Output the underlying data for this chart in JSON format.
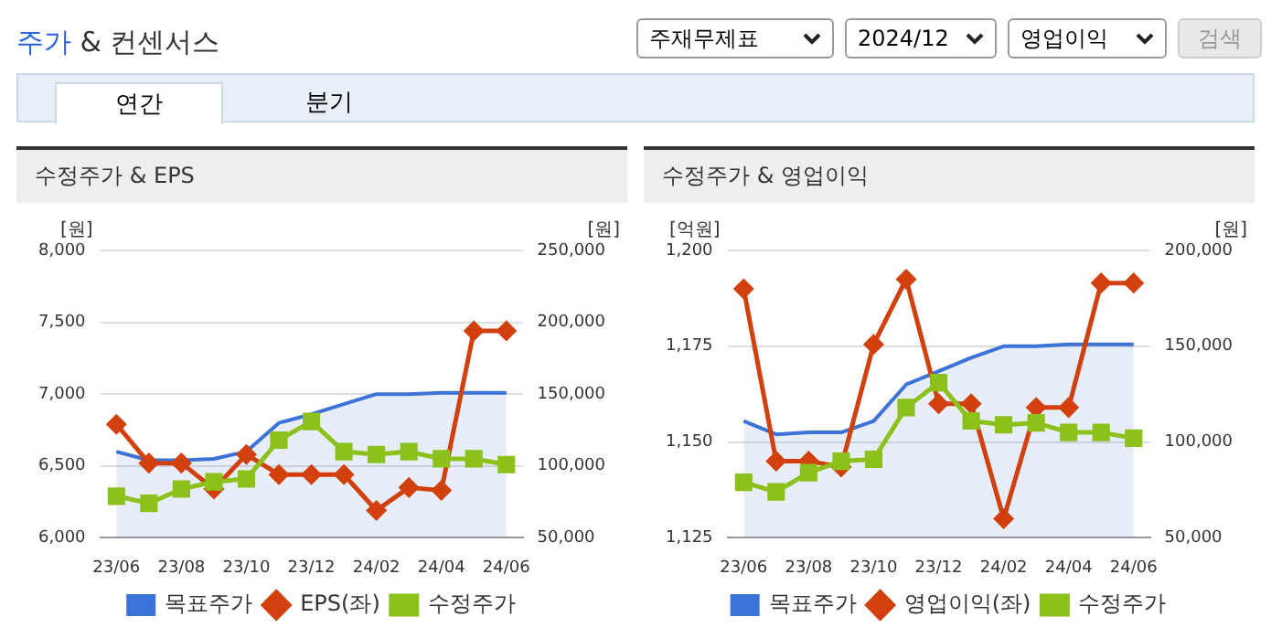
{
  "chart_data": [
    {
      "type": "other",
      "title": "주가 & 컨센서스",
      "annotations": [
        "주재무제표",
        "2024/12",
        "영업이익",
        "검색",
        "연간",
        "분기"
      ]
    },
    {
      "type": "line",
      "title": "수정주가 & EPS",
      "ylabel": "[원]",
      "y2label": "[원]",
      "categories": [
        "23/06",
        null,
        "23/08",
        null,
        "23/10",
        null,
        "23/12",
        null,
        "24/02",
        null,
        "24/04",
        null,
        "24/06"
      ],
      "series": [
        {
          "name": "목표주가",
          "type": "area",
          "color": "#3d72d8",
          "axis": "y2",
          "marker": "none",
          "values": [
            110000,
            104000,
            104000,
            105000,
            110000,
            130000,
            136000,
            143000,
            150000,
            150000,
            151000,
            151000,
            151000
          ]
        },
        {
          "name": "EPS(좌)",
          "type": "line",
          "color": "#d2400e",
          "marker": "diamond",
          "values": [
            6790,
            6520,
            6520,
            6340,
            6580,
            6440,
            6440,
            6440,
            6190,
            6350,
            6330,
            7440,
            7440
          ]
        },
        {
          "name": "수정주가",
          "type": "line",
          "color": "#8cc01a",
          "axis": "y2",
          "marker": "square",
          "values": [
            79000,
            74000,
            84000,
            89000,
            91000,
            118000,
            131000,
            110000,
            108000,
            110000,
            105000,
            105000,
            101000
          ]
        }
      ],
      "ylim": [
        6000,
        8000
      ],
      "yticks": [
        {
          "value": 6000,
          "label": "6,000"
        },
        {
          "value": 6500,
          "label": "6,500"
        },
        {
          "value": 7000,
          "label": "7,000"
        },
        {
          "value": 7500,
          "label": "7,500"
        },
        {
          "value": 8000,
          "label": "8,000"
        }
      ],
      "y2lim": [
        50000,
        250000
      ],
      "y2ticks": [
        {
          "value": 50000,
          "label": "50,000"
        },
        {
          "value": 100000,
          "label": "100,000"
        },
        {
          "value": 150000,
          "label": "150,000"
        },
        {
          "value": 200000,
          "label": "200,000"
        },
        {
          "value": 250000,
          "label": "250,000"
        }
      ],
      "grid": "y",
      "legend": "bottom"
    },
    {
      "type": "line",
      "title": "수정주가 & 영업이익",
      "ylabel": "[억원]",
      "y2label": "[원]",
      "categories": [
        "23/06",
        null,
        "23/08",
        null,
        "23/10",
        null,
        "23/12",
        null,
        "24/02",
        null,
        "24/04",
        null,
        "24/06"
      ],
      "series": [
        {
          "name": "목표주가",
          "type": "area",
          "color": "#3d72d8",
          "axis": "y2",
          "marker": "none",
          "values": [
            111000,
            104000,
            105000,
            105000,
            111000,
            130000,
            137000,
            144000,
            150000,
            150000,
            151000,
            151000,
            151000
          ]
        },
        {
          "name": "영업이익(좌)",
          "type": "line",
          "color": "#d2400e",
          "marker": "diamond",
          "values": [
            1190,
            1145,
            1145,
            1143.5,
            1175.5,
            1192.5,
            1160,
            1160,
            1130,
            1159,
            1159,
            1191.5,
            1191.5
          ]
        },
        {
          "name": "수정주가",
          "type": "line",
          "color": "#8cc01a",
          "axis": "y2",
          "marker": "square",
          "values": [
            79000,
            74000,
            84000,
            90000,
            91000,
            118000,
            131000,
            111000,
            109000,
            110000,
            105000,
            105000,
            102000
          ]
        }
      ],
      "ylim": [
        1125,
        1200
      ],
      "yticks": [
        {
          "value": 1125,
          "label": "1,125"
        },
        {
          "value": 1150,
          "label": "1,150"
        },
        {
          "value": 1175,
          "label": "1,175"
        },
        {
          "value": 1200,
          "label": "1,200"
        }
      ],
      "y2lim": [
        50000,
        200000
      ],
      "y2ticks": [
        {
          "value": 50000,
          "label": "50,000"
        },
        {
          "value": 100000,
          "label": "100,000"
        },
        {
          "value": 150000,
          "label": "150,000"
        },
        {
          "value": 200000,
          "label": "200,000"
        }
      ],
      "grid": "y",
      "legend": "bottom"
    }
  ]
}
